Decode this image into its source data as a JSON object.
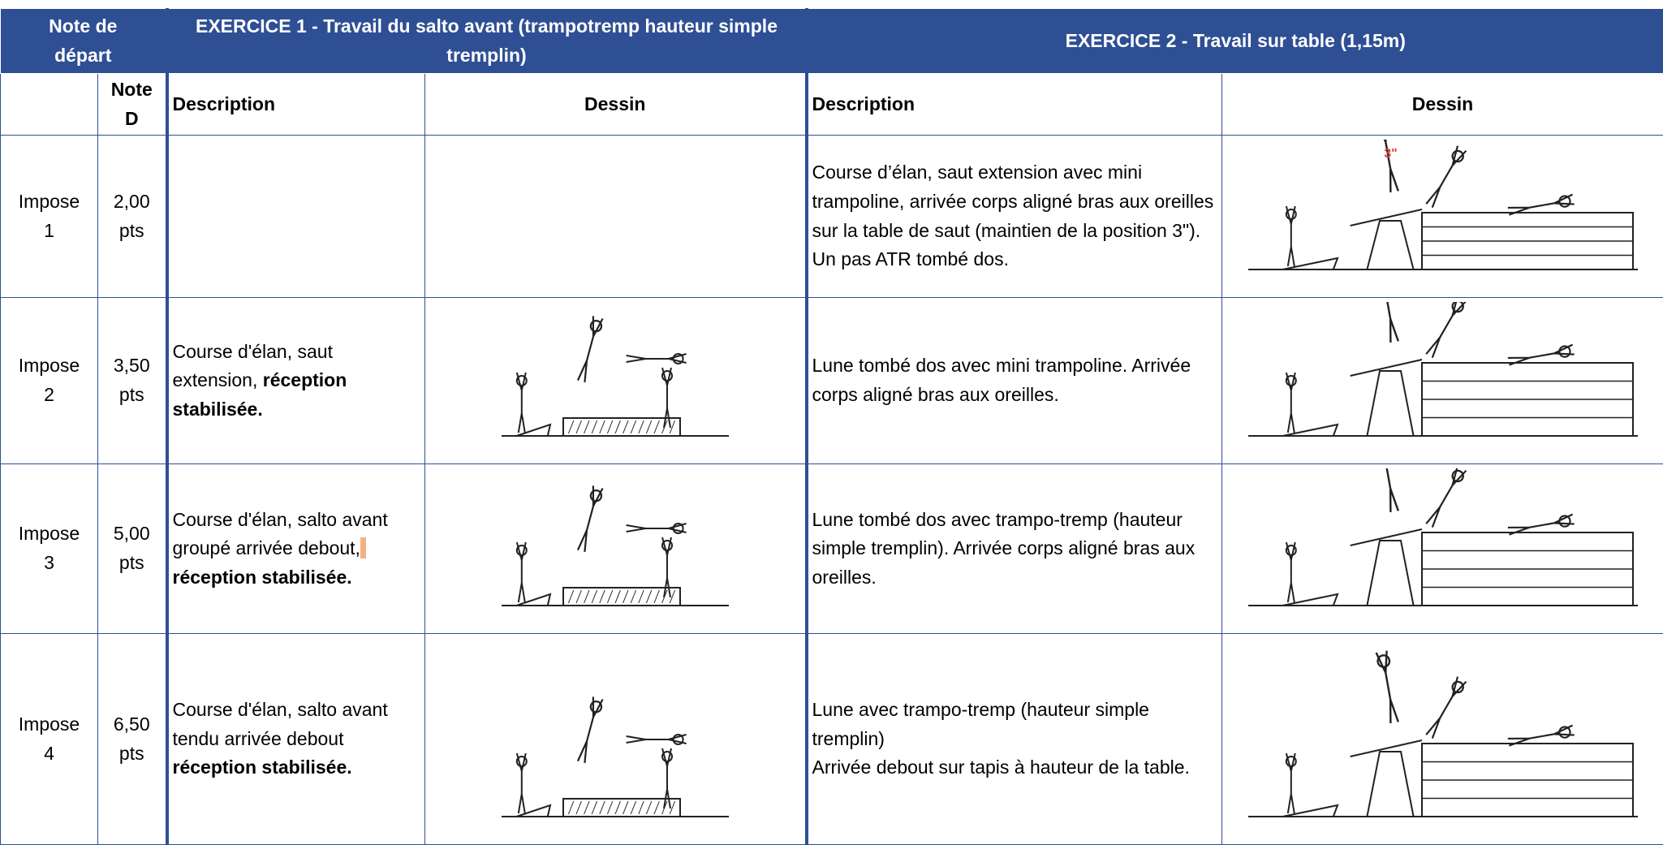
{
  "header": {
    "start_note": "Note de départ",
    "exercise1": "EXERCICE 1 - Travail du salto avant (trampotremp hauteur simple tremplin)",
    "exercise2": "EXERCICE 2 - Travail sur table (1,15m)"
  },
  "columns": {
    "note_d": "Note D",
    "ex1_description": "Description",
    "ex1_drawing": "Dessin",
    "ex2_description": "Description",
    "ex2_drawing": "Dessin"
  },
  "rows": [
    {
      "name": "Impose 1",
      "note_d": "2,00 pts",
      "ex2_description": [
        {
          "text": "Course d’élan, saut extension avec mini trampoline, arrivée corps aligné bras aux oreilles sur la table de saut (maintien de la position 3\"). Un pas ATR tombé dos."
        }
      ],
      "ex2_drawing_label": "3\""
    },
    {
      "name": "Impose 2",
      "note_d": "3,50 pts",
      "ex1_description": [
        {
          "text": "Course d'élan, saut extension, "
        },
        {
          "text": "réception stabilisée.",
          "bold": true
        }
      ],
      "ex2_description": [
        {
          "text": "Lune tombé dos avec mini trampoline. Arrivée corps aligné bras aux oreilles."
        }
      ]
    },
    {
      "name": "Impose 3",
      "note_d": "5,00 pts",
      "ex1_description": [
        {
          "text": "Course d'élan, salto avant groupé arrivée debout,"
        },
        {
          "text": " réception stabilisée.",
          "bold": true
        }
      ],
      "ex2_description": [
        {
          "text": "Lune tombé dos avec trampo-tremp (hauteur simple tremplin). Arrivée corps aligné bras aux oreilles."
        }
      ]
    },
    {
      "name": "Impose 4",
      "note_d": "6,50 pts",
      "ex1_description": [
        {
          "text": "Course d'élan, salto avant tendu arrivée debout "
        },
        {
          "text": "réception stabilisée.",
          "bold": true
        }
      ],
      "ex2_description": [
        {
          "text": "Lune avec trampo-tremp (hauteur simple tremplin)\nArrivée debout sur tapis à hauteur de la table."
        }
      ]
    }
  ]
}
